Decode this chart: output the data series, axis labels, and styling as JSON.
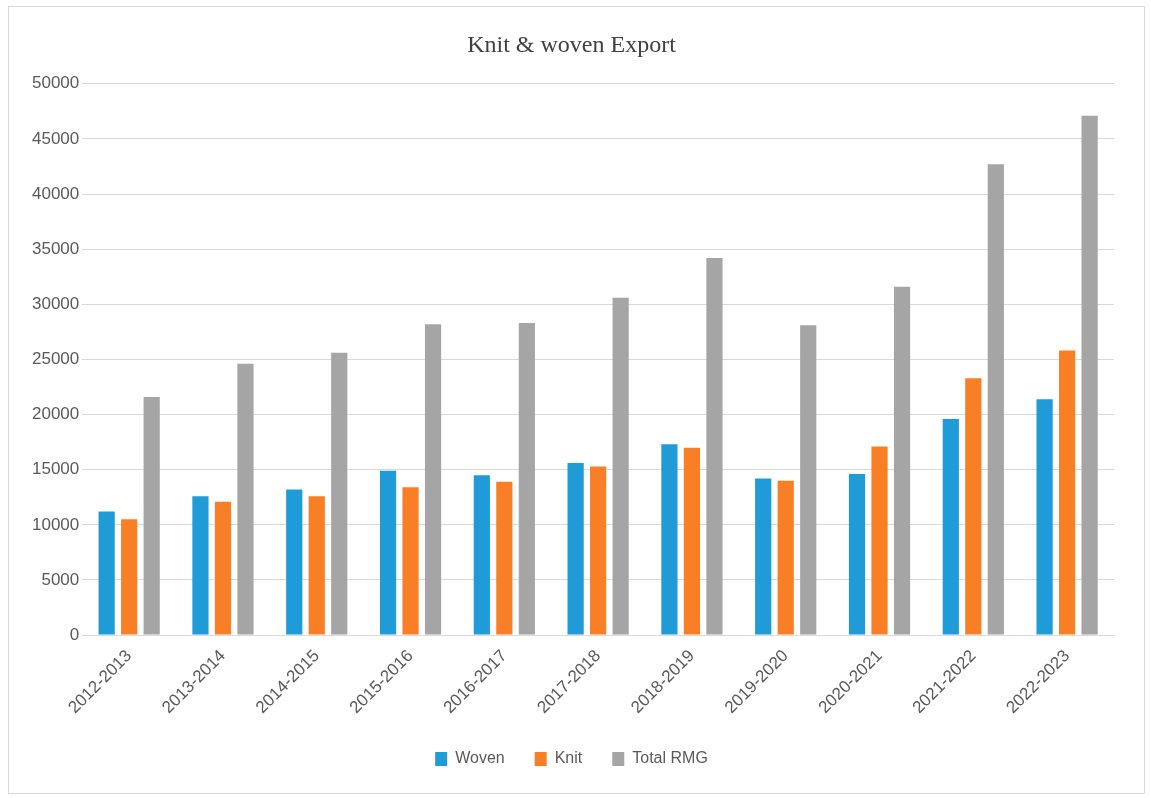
{
  "chart_data": {
    "type": "bar",
    "title": "Knit & woven Export",
    "categories": [
      "2012-2013",
      "2013-2014",
      "2014-2015",
      "2015-2016",
      "2016-2017",
      "2017-2018",
      "2018-2019",
      "2019-2020",
      "2020-2021",
      "2021-2022",
      "2022-2023"
    ],
    "series": [
      {
        "name": "Woven",
        "color": "#1f9bd7",
        "values": [
          11200,
          12600,
          13200,
          14900,
          14500,
          15600,
          17300,
          14200,
          14600,
          19600,
          21400
        ]
      },
      {
        "name": "Knit",
        "color": "#f97f27",
        "values": [
          10500,
          12100,
          12600,
          13400,
          13900,
          15300,
          17000,
          14000,
          17100,
          23300,
          25800
        ]
      },
      {
        "name": "Total RMG",
        "color": "#a5a5a5",
        "values": [
          21600,
          24600,
          25600,
          28200,
          28300,
          30600,
          34200,
          28100,
          31600,
          42700,
          47100
        ]
      }
    ],
    "ylim": [
      0,
      50000
    ],
    "yticks": [
      0,
      5000,
      10000,
      15000,
      20000,
      25000,
      30000,
      35000,
      40000,
      45000,
      50000
    ],
    "grid": "y",
    "legend": "bottom"
  }
}
